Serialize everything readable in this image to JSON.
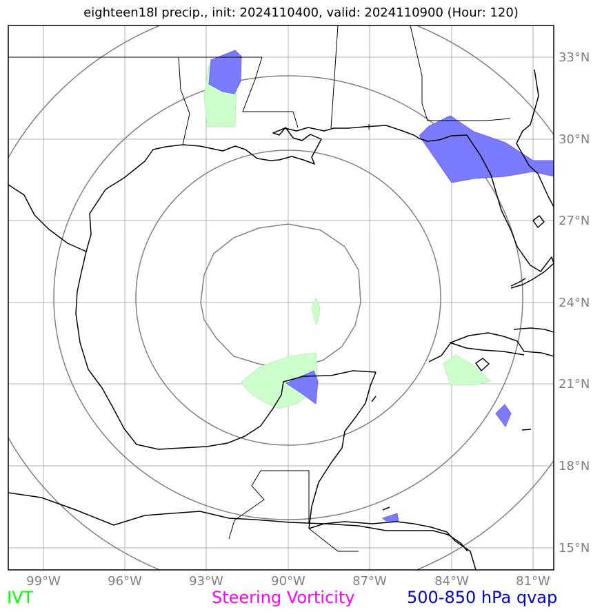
{
  "title": "eighteen18l precip., init: 2024110400, valid: 2024110900 (Hour: 120)",
  "lon_ticks": [
    "99°W",
    "96°W",
    "93°W",
    "90°W",
    "87°W",
    "84°W",
    "81°W"
  ],
  "lat_ticks": [
    "33°N",
    "30°N",
    "27°N",
    "24°N",
    "21°N",
    "18°N",
    "15°N"
  ],
  "legend": {
    "ivt": {
      "label": "IVT",
      "color": "#00ff00"
    },
    "vorticity": {
      "label": "Steering Vorticity",
      "color": "#ff00ff"
    },
    "qvap": {
      "label": "500-850 hPa qvap",
      "color": "#0000cc"
    }
  },
  "colors": {
    "ivt_fill": "#ccffcc",
    "qvap_fill": "#6666ff",
    "coast": "#000000",
    "grid": "#b0b0b0",
    "range_rings": "#808080"
  }
}
